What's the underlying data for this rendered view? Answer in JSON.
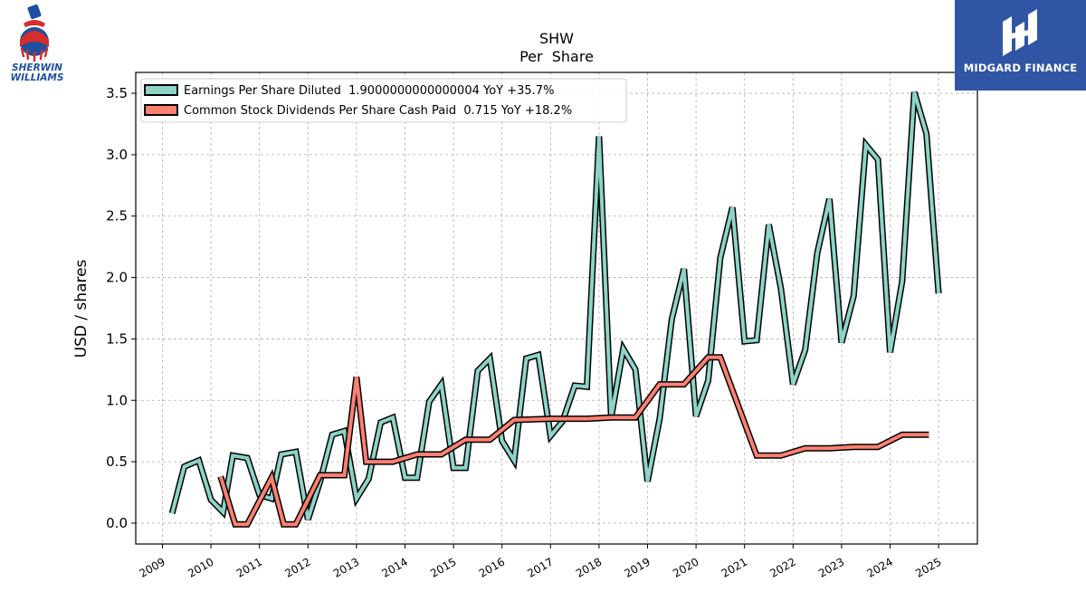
{
  "logos": {
    "left_brand": "SHERWIN WILLIAMS",
    "right_brand": "MIDGARD FINANCE"
  },
  "chart_data": {
    "type": "line",
    "title": "SHW",
    "subtitle": "Per  Share",
    "xlabel": "",
    "ylabel": "USD / shares",
    "xlim": [
      2008.45,
      2025.8
    ],
    "ylim": [
      -0.17,
      3.67
    ],
    "x_ticks": [
      "2009",
      "2010",
      "2011",
      "2012",
      "2013",
      "2014",
      "2015",
      "2016",
      "2017",
      "2018",
      "2019",
      "2020",
      "2021",
      "2022",
      "2023",
      "2024",
      "2025"
    ],
    "y_ticks": [
      "0.0",
      "0.5",
      "1.0",
      "1.5",
      "2.0",
      "2.5",
      "3.0",
      "3.5"
    ],
    "grid": true,
    "legend_position": "top-left",
    "series": [
      {
        "name": "Earnings Per Share Diluted  1.9000000000000004 YoY +35.7%",
        "color": "#8dd3c7",
        "points": [
          [
            2009.2,
            0.08
          ],
          [
            2009.45,
            0.46
          ],
          [
            2009.75,
            0.51
          ],
          [
            2010.0,
            0.19
          ],
          [
            2010.25,
            0.09
          ],
          [
            2010.45,
            0.55
          ],
          [
            2010.75,
            0.53
          ],
          [
            2011.0,
            0.23
          ],
          [
            2011.25,
            0.2
          ],
          [
            2011.45,
            0.56
          ],
          [
            2011.75,
            0.58
          ],
          [
            2012.0,
            0.03
          ],
          [
            2012.25,
            0.34
          ],
          [
            2012.5,
            0.72
          ],
          [
            2012.75,
            0.75
          ],
          [
            2013.0,
            0.2
          ],
          [
            2013.25,
            0.36
          ],
          [
            2013.5,
            0.82
          ],
          [
            2013.75,
            0.86
          ],
          [
            2014.0,
            0.37
          ],
          [
            2014.25,
            0.37
          ],
          [
            2014.5,
            0.99
          ],
          [
            2014.75,
            1.13
          ],
          [
            2015.0,
            0.45
          ],
          [
            2015.25,
            0.45
          ],
          [
            2015.5,
            1.24
          ],
          [
            2015.75,
            1.34
          ],
          [
            2016.0,
            0.67
          ],
          [
            2016.25,
            0.51
          ],
          [
            2016.5,
            1.34
          ],
          [
            2016.75,
            1.37
          ],
          [
            2017.0,
            0.71
          ],
          [
            2017.25,
            0.83
          ],
          [
            2017.5,
            1.12
          ],
          [
            2017.75,
            1.11
          ],
          [
            2018.0,
            3.15
          ],
          [
            2018.25,
            0.86
          ],
          [
            2018.5,
            1.42
          ],
          [
            2018.75,
            1.25
          ],
          [
            2019.0,
            0.34
          ],
          [
            2019.25,
            0.85
          ],
          [
            2019.5,
            1.66
          ],
          [
            2019.75,
            2.07
          ],
          [
            2020.0,
            0.87
          ],
          [
            2020.25,
            1.16
          ],
          [
            2020.5,
            2.16
          ],
          [
            2020.75,
            2.57
          ],
          [
            2021.0,
            1.48
          ],
          [
            2021.25,
            1.49
          ],
          [
            2021.5,
            2.43
          ],
          [
            2021.75,
            1.91
          ],
          [
            2022.0,
            1.13
          ],
          [
            2022.25,
            1.41
          ],
          [
            2022.5,
            2.2
          ],
          [
            2022.75,
            2.64
          ],
          [
            2023.0,
            1.47
          ],
          [
            2023.25,
            1.85
          ],
          [
            2023.5,
            3.08
          ],
          [
            2023.75,
            2.96
          ],
          [
            2024.0,
            1.39
          ],
          [
            2024.25,
            1.97
          ],
          [
            2024.5,
            3.51
          ],
          [
            2024.75,
            3.17
          ],
          [
            2025.0,
            1.87
          ]
        ]
      },
      {
        "name": "Common Stock Dividends Per Share Cash Paid  0.715 YoY +18.2%",
        "color": "#fb8072",
        "points": [
          [
            2010.2,
            0.38
          ],
          [
            2010.5,
            -0.01
          ],
          [
            2010.75,
            -0.01
          ],
          [
            2011.25,
            0.37
          ],
          [
            2011.5,
            -0.01
          ],
          [
            2011.75,
            -0.01
          ],
          [
            2012.25,
            0.39
          ],
          [
            2012.75,
            0.39
          ],
          [
            2013.0,
            1.19
          ],
          [
            2013.2,
            0.5
          ],
          [
            2013.75,
            0.5
          ],
          [
            2014.25,
            0.56
          ],
          [
            2014.75,
            0.56
          ],
          [
            2015.25,
            0.68
          ],
          [
            2015.75,
            0.68
          ],
          [
            2016.25,
            0.84
          ],
          [
            2017.0,
            0.85
          ],
          [
            2017.75,
            0.85
          ],
          [
            2018.25,
            0.86
          ],
          [
            2018.75,
            0.86
          ],
          [
            2019.25,
            1.13
          ],
          [
            2019.75,
            1.13
          ],
          [
            2020.25,
            1.35
          ],
          [
            2020.5,
            1.35
          ],
          [
            2021.25,
            0.55
          ],
          [
            2021.75,
            0.55
          ],
          [
            2022.25,
            0.61
          ],
          [
            2022.75,
            0.61
          ],
          [
            2023.25,
            0.62
          ],
          [
            2023.75,
            0.62
          ],
          [
            2024.25,
            0.72
          ],
          [
            2024.8,
            0.72
          ]
        ]
      }
    ]
  }
}
